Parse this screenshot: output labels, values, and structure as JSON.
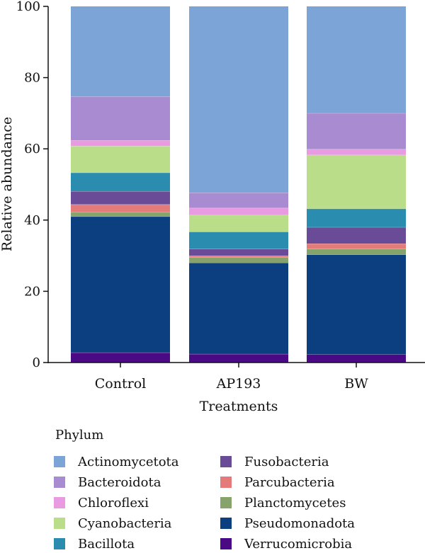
{
  "chart_data": {
    "type": "bar",
    "stacked": true,
    "categories": [
      "Control",
      "AP193",
      "BW"
    ],
    "xlabel": "Treatments",
    "ylabel": "Relative abundance",
    "ylim": [
      0,
      100
    ],
    "yticks": [
      0,
      20,
      40,
      60,
      80,
      100
    ],
    "grid": false,
    "legend_title": "Phylum",
    "legend_position": "bottom",
    "series": [
      {
        "name": "Verrucomicrobia",
        "color": "#4a0a85",
        "values": [
          2.8,
          2.4,
          2.3
        ]
      },
      {
        "name": "Pseudomonadota",
        "color": "#0c3f80",
        "values": [
          38.2,
          25.6,
          28.0
        ]
      },
      {
        "name": "Planctomycetes",
        "color": "#86a36c",
        "values": [
          1.2,
          1.5,
          1.6
        ]
      },
      {
        "name": "Parcubacteria",
        "color": "#e57a7b",
        "values": [
          2.2,
          0.5,
          1.5
        ]
      },
      {
        "name": "Fusobacteria",
        "color": "#6a4b98",
        "values": [
          3.7,
          1.9,
          4.6
        ]
      },
      {
        "name": "Bacillota",
        "color": "#2a8db0",
        "values": [
          5.2,
          4.8,
          5.2
        ]
      },
      {
        "name": "Cyanobacteria",
        "color": "#b9dd89",
        "values": [
          7.5,
          4.7,
          15.1
        ]
      },
      {
        "name": "Chloroflexi",
        "color": "#e89be0",
        "values": [
          1.6,
          2.0,
          1.6
        ]
      },
      {
        "name": "Bacteroidota",
        "color": "#a98bd2",
        "values": [
          12.3,
          4.3,
          10.1
        ]
      },
      {
        "name": "Actinomycetota",
        "color": "#7ca4d6",
        "values": [
          25.3,
          52.3,
          30.0
        ]
      }
    ],
    "legend_order": [
      "Actinomycetota",
      "Bacteroidota",
      "Chloroflexi",
      "Cyanobacteria",
      "Bacillota",
      "Fusobacteria",
      "Parcubacteria",
      "Planctomycetes",
      "Pseudomonadota",
      "Verrucomicrobia"
    ]
  }
}
